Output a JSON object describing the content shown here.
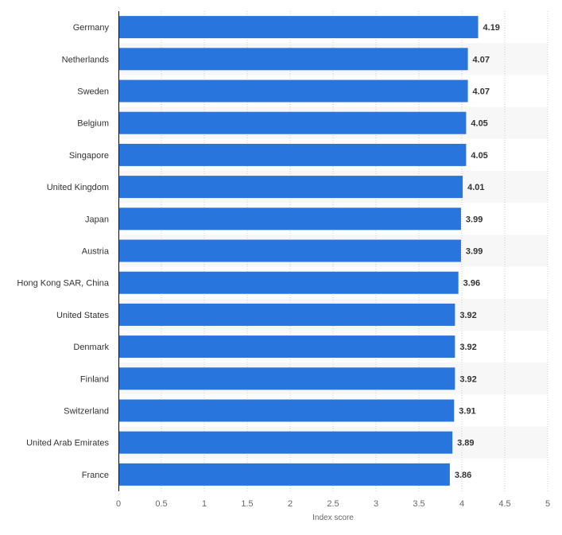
{
  "chart_data": {
    "type": "bar",
    "orientation": "horizontal",
    "categories": [
      "Germany",
      "Netherlands",
      "Sweden",
      "Belgium",
      "Singapore",
      "United Kingdom",
      "Japan",
      "Austria",
      "Hong Kong SAR, China",
      "United States",
      "Denmark",
      "Finland",
      "Switzerland",
      "United Arab Emirates",
      "France"
    ],
    "values": [
      4.19,
      4.07,
      4.07,
      4.05,
      4.05,
      4.01,
      3.99,
      3.99,
      3.96,
      3.92,
      3.92,
      3.92,
      3.91,
      3.89,
      3.86
    ],
    "xlabel": "Index score",
    "xlim": [
      0,
      5
    ],
    "xticks": [
      "0",
      "0.5",
      "1",
      "1.5",
      "2",
      "2.5",
      "3",
      "3.5",
      "4",
      "4.5",
      "5"
    ],
    "grid": true,
    "bar_color": "#2876dd",
    "band_color": "#f7f7f7"
  }
}
